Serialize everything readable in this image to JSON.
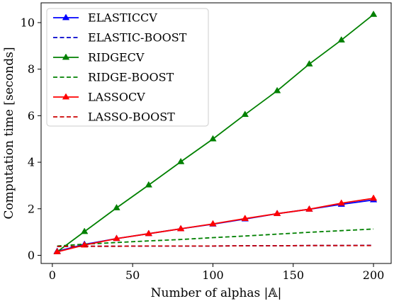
{
  "chart_data": {
    "type": "line",
    "xlabel": "Number of alphas |𝔸|",
    "ylabel": "Computation time [seconds]",
    "xlim": [
      -7,
      211
    ],
    "ylim": [
      -0.35,
      10.85
    ],
    "xticks": [
      0,
      50,
      100,
      150,
      200
    ],
    "yticks": [
      0,
      2,
      4,
      6,
      8,
      10
    ],
    "grid": false,
    "legend_position": "top-left",
    "x": [
      3,
      20,
      40,
      60,
      80,
      100,
      120,
      140,
      160,
      180,
      200
    ],
    "series": [
      {
        "name": "ELASTICCV",
        "color": "#0000ff",
        "style": "solid",
        "marker": "triangle",
        "values": [
          0.17,
          0.47,
          0.72,
          0.93,
          1.14,
          1.34,
          1.56,
          1.79,
          1.98,
          2.19,
          2.38
        ]
      },
      {
        "name": "ELASTIC-BOOST",
        "color": "#0000cc",
        "style": "dashed",
        "marker": "none",
        "values": [
          0.38,
          0.39,
          0.39,
          0.4,
          0.4,
          0.4,
          0.41,
          0.41,
          0.42,
          0.42,
          0.43
        ]
      },
      {
        "name": "RIDGECV",
        "color": "#008000",
        "style": "solid",
        "marker": "triangle",
        "values": [
          0.15,
          1.02,
          2.04,
          3.02,
          4.02,
          5.0,
          6.05,
          7.07,
          8.22,
          9.25,
          10.35
        ]
      },
      {
        "name": "RIDGE-BOOST",
        "color": "#008000",
        "style": "dashed",
        "marker": "none",
        "values": [
          0.4,
          0.48,
          0.55,
          0.62,
          0.68,
          0.76,
          0.83,
          0.91,
          0.99,
          1.06,
          1.13
        ]
      },
      {
        "name": "LASSOCV",
        "color": "#ff0000",
        "style": "solid",
        "marker": "triangle",
        "values": [
          0.15,
          0.44,
          0.72,
          0.93,
          1.14,
          1.35,
          1.58,
          1.79,
          1.98,
          2.24,
          2.45
        ]
      },
      {
        "name": "LASSO-BOOST",
        "color": "#cc0000",
        "style": "dashed",
        "marker": "none",
        "values": [
          0.38,
          0.39,
          0.39,
          0.4,
          0.4,
          0.4,
          0.41,
          0.41,
          0.42,
          0.42,
          0.42
        ]
      }
    ]
  }
}
